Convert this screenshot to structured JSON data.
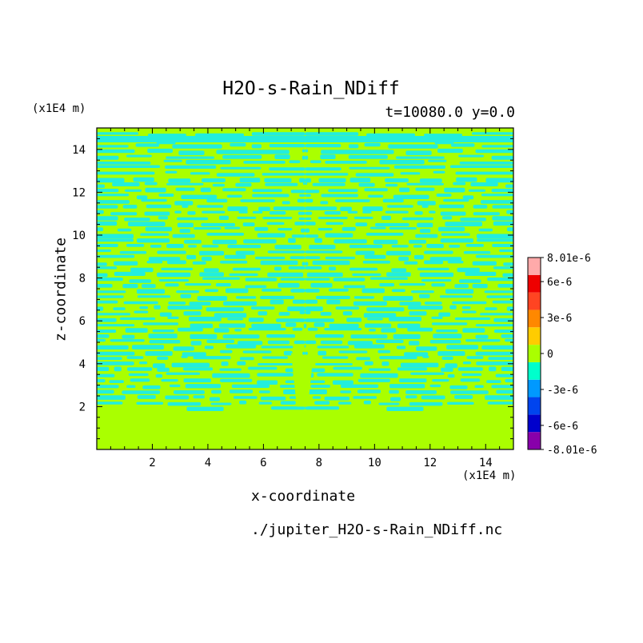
{
  "chart_data": {
    "type": "heatmap",
    "title": "H2O-s-Rain_NDiff",
    "subtitle": "t=10080.0 y=0.0",
    "xlabel": "x-coordinate",
    "ylabel": "z-coordinate",
    "x_unit": "(x1E4 m)",
    "y_unit": "(x1E4 m)",
    "xlim": [
      0,
      15
    ],
    "ylim": [
      0,
      15
    ],
    "x_ticks": [
      2,
      4,
      6,
      8,
      10,
      12,
      14
    ],
    "y_ticks": [
      2,
      4,
      6,
      8,
      10,
      12,
      14
    ],
    "x_tick_labels": [
      "2",
      "4",
      "6",
      "8",
      "10",
      "12",
      "14"
    ],
    "y_tick_labels": [
      "2",
      "4",
      "6",
      "8",
      "10",
      "12",
      "14"
    ],
    "footer": "./jupiter_H2O-s-Rain_NDiff.nc",
    "colorbar": {
      "labels": [
        "8.01e-6",
        "6e-6",
        "3e-6",
        "0",
        "-3e-6",
        "-6e-6",
        "-8.01e-6"
      ],
      "label_values": [
        8.01e-06,
        6e-06,
        3e-06,
        0,
        -3e-06,
        -6e-06,
        -8.01e-06
      ],
      "min": -8.01e-06,
      "max": 8.01e-06,
      "colors": [
        "#8800aa",
        "#0000cc",
        "#0044ee",
        "#0099ff",
        "#00ffcc",
        "#aaff00",
        "#ffcc00",
        "#ff8800",
        "#ff4422",
        "#ee0000",
        "#ffaaaa"
      ]
    },
    "field_colors": {
      "positive": "#aaff00",
      "negative": "#22eedd"
    }
  }
}
